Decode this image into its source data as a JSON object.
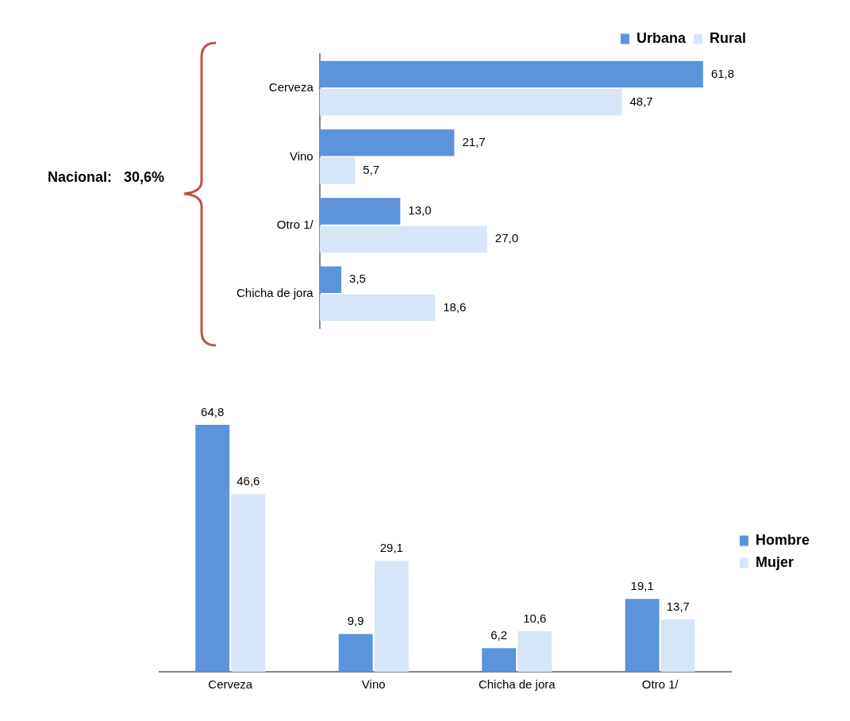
{
  "chart_data": [
    {
      "type": "bar",
      "orientation": "horizontal",
      "legend": "top",
      "categories": [
        "Cerveza",
        "Vino",
        "Otro 1/",
        "Chicha de jora"
      ],
      "series": [
        {
          "name": "Urbana",
          "color": "#5b93dc",
          "values": [
            61.8,
            21.7,
            13.0,
            3.5
          ],
          "value_labels": [
            "61,8",
            "21,7",
            "13,0",
            "3,5"
          ]
        },
        {
          "name": "Rural",
          "color": "#d6e6f8",
          "values": [
            48.7,
            5.7,
            27.0,
            18.6
          ],
          "value_labels": [
            "48,7",
            "5,7",
            "27,0",
            "18,6"
          ]
        }
      ],
      "annotations": [
        "Nacional:   30,6%"
      ]
    },
    {
      "type": "bar",
      "legend": "right",
      "categories": [
        "Cerveza",
        "Vino",
        "Chicha de jora",
        "Otro 1/"
      ],
      "series": [
        {
          "name": "Hombre",
          "color": "#5b93dc",
          "values": [
            64.8,
            9.9,
            6.2,
            19.1
          ],
          "value_labels": [
            "64,8",
            "9,9",
            "6,2",
            "19,1"
          ]
        },
        {
          "name": "Mujer",
          "color": "#d6e6f8",
          "values": [
            46.6,
            29.1,
            10.6,
            13.7
          ],
          "value_labels": [
            "46,6",
            "29,1",
            "10,6",
            "13,7"
          ]
        }
      ]
    }
  ]
}
